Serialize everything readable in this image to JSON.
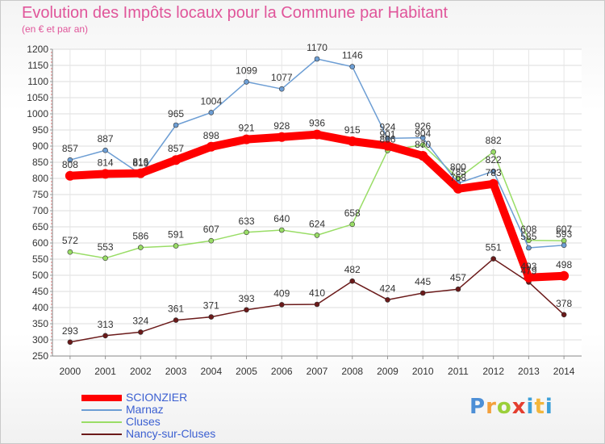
{
  "title": "Evolution des Impôts locaux pour la Commune par Habitant",
  "subtitle": "(en € et par an)",
  "logo": {
    "letters": [
      "P",
      "r",
      "o",
      "x",
      "i",
      "t",
      "i"
    ]
  },
  "colors": {
    "SCIONZIER": "#ff0000",
    "Marnaz": "#6d9ed4",
    "Cluses": "#99dd66",
    "Nancy-sur-Cluses": "#6b1a1a",
    "legend_text": "#3b5fd1",
    "title": "#e0559a"
  },
  "chart_data": {
    "type": "line",
    "title": "Evolution des Impôts locaux pour la Commune par Habitant",
    "subtitle": "(en € et par an)",
    "xlabel": "",
    "ylabel": "",
    "x": [
      "2000",
      "2001",
      "2002",
      "2003",
      "2004",
      "2005",
      "2006",
      "2007",
      "2008",
      "2009",
      "2010",
      "2011",
      "2012",
      "2013",
      "2014"
    ],
    "ylim": [
      250,
      1200
    ],
    "yticks": [
      250,
      300,
      350,
      400,
      450,
      500,
      550,
      600,
      650,
      700,
      750,
      800,
      850,
      900,
      950,
      1000,
      1050,
      1100,
      1150,
      1200
    ],
    "grid": true,
    "legend_position": "bottom-left",
    "series": [
      {
        "name": "SCIONZIER",
        "color": "#ff0000",
        "width": 10,
        "values": [
          808,
          814,
          816,
          857,
          898,
          921,
          928,
          936,
          915,
          901,
          870,
          768,
          783,
          493,
          498
        ]
      },
      {
        "name": "Marnaz",
        "color": "#6d9ed4",
        "width": 1.5,
        "values": [
          857,
          887,
          813,
          965,
          1004,
          1099,
          1077,
          1170,
          1146,
          924,
          926,
          785,
          822,
          585,
          593
        ]
      },
      {
        "name": "Cluses",
        "color": "#99dd66",
        "width": 1.5,
        "values": [
          572,
          553,
          586,
          591,
          607,
          633,
          640,
          624,
          658,
          886,
          904,
          800,
          882,
          608,
          607
        ]
      },
      {
        "name": "Nancy-sur-Cluses",
        "color": "#6b1a1a",
        "width": 1.5,
        "values": [
          293,
          313,
          324,
          361,
          371,
          393,
          409,
          410,
          482,
          424,
          445,
          457,
          551,
          479,
          378
        ]
      }
    ]
  }
}
